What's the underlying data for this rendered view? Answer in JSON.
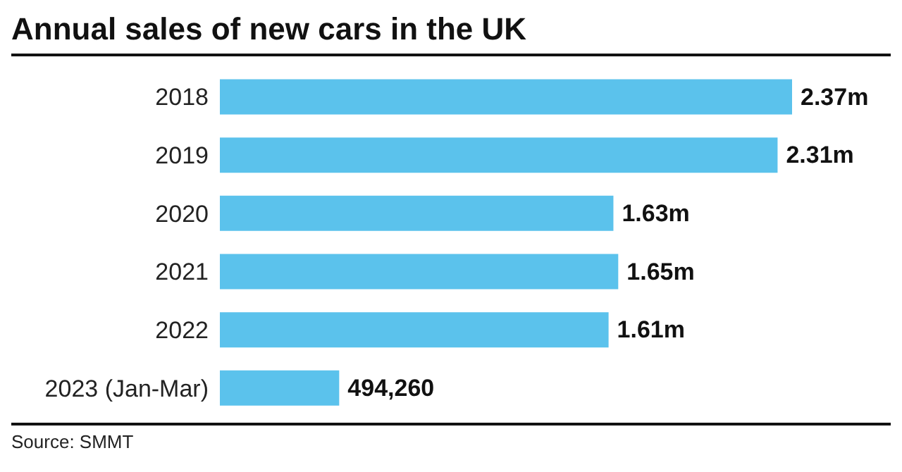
{
  "chart_data": {
    "type": "bar",
    "orientation": "horizontal",
    "title": "Annual sales of new cars in the UK",
    "categories": [
      "2018",
      "2019",
      "2020",
      "2021",
      "2022",
      "2023 (Jan-Mar)"
    ],
    "values": [
      2370000,
      2310000,
      1630000,
      1650000,
      1610000,
      494260
    ],
    "value_labels": [
      "2.37m",
      "2.31m",
      "1.63m",
      "1.65m",
      "1.61m",
      "494,260"
    ],
    "color": "#5bc2ec",
    "annotations": [
      "Source: SMMT"
    ]
  }
}
